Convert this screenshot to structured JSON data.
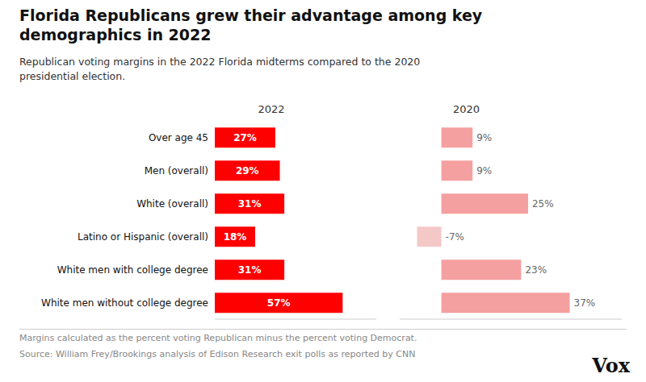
{
  "chart_data": [
    {
      "type": "bar",
      "orientation": "horizontal",
      "title": "Florida Republicans grew their advantage among key\ndemographics in 2022",
      "subtitle": "Republican voting margins in the 2022 Florida midterms compared to the 2020\npresidential election.",
      "annotations": [
        "Margins calculated as the percent voting Republican minus the percent voting Democrat.",
        "Source: William Frey/Brookings analysis of Edison Research exit polls as reported by CNN",
        "Vox"
      ],
      "categories": [
        "Over age 45",
        "Men (overall)",
        "White (overall)",
        "Latino or Hispanic (overall)",
        "White men with college degree",
        "White men without college degree"
      ],
      "series": [
        {
          "name": "2022",
          "color": "#ff0000",
          "values": [
            27,
            29,
            31,
            18,
            31,
            57
          ],
          "value_labels": [
            "27%",
            "29%",
            "31%",
            "18%",
            "31%",
            "57%"
          ]
        }
      ],
      "xlim": [
        0,
        72
      ],
      "data_labels": true,
      "tick_labels": "y",
      "grid": false
    },
    {
      "type": "bar",
      "orientation": "horizontal",
      "categories": [
        "Over age 45",
        "Men (overall)",
        "White (overall)",
        "Latino or Hispanic (overall)",
        "White men with college degree",
        "White men without college degree"
      ],
      "series": [
        {
          "name": "2020",
          "colors": [
            "#f5a0a0",
            "#f5a0a0",
            "#f5a0a0",
            "#f5c8c8",
            "#f5a0a0",
            "#f5a0a0"
          ],
          "values": [
            9,
            9,
            25,
            -7,
            23,
            37
          ],
          "value_labels": [
            "9%",
            "9%",
            "25%",
            "-7%",
            "23%",
            "37%"
          ]
        }
      ],
      "xlim": [
        -12,
        52
      ],
      "data_labels": true,
      "tick_labels": false,
      "grid": false
    }
  ]
}
